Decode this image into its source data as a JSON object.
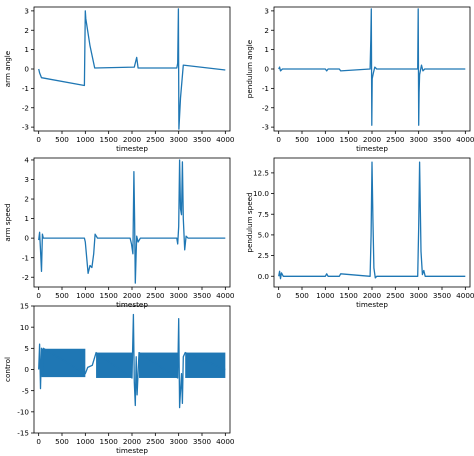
{
  "line_color": "#1f77b4",
  "chart_data": [
    {
      "type": "line",
      "xlabel": "timestep",
      "ylabel": "arm angle",
      "xlim": [
        -100,
        4100
      ],
      "ylim": [
        -3.2,
        3.2
      ],
      "xticks": [
        0,
        500,
        1000,
        1500,
        2000,
        2500,
        3000,
        3500,
        4000
      ],
      "yticks": [
        -3,
        -2,
        -1,
        0,
        1,
        2,
        3
      ],
      "grid": false,
      "series": [
        {
          "x": [
            0,
            20,
            60,
            980,
            1000,
            1010,
            1100,
            1200,
            2050,
            2100,
            2130,
            2170,
            2960,
            2980,
            2995,
            3005,
            3015,
            3040,
            3100,
            4000
          ],
          "y": [
            0.0,
            -0.2,
            -0.45,
            -0.85,
            3.0,
            2.6,
            1.2,
            0.05,
            0.1,
            0.6,
            0.05,
            0.05,
            0.05,
            0.3,
            3.1,
            -3.1,
            -2.6,
            -1.5,
            0.2,
            -0.05
          ]
        }
      ]
    },
    {
      "type": "line",
      "xlabel": "timestep",
      "ylabel": "pendulum angle",
      "xlim": [
        -100,
        4100
      ],
      "ylim": [
        -3.2,
        3.2
      ],
      "xticks": [
        0,
        500,
        1000,
        1500,
        2000,
        2500,
        3000,
        3500,
        4000
      ],
      "yticks": [
        -3,
        -2,
        -1,
        0,
        1,
        2,
        3
      ],
      "grid": false,
      "series": [
        {
          "x": [
            0,
            20,
            40,
            80,
            1000,
            1030,
            1060,
            1300,
            1330,
            1960,
            1975,
            1985,
            1995,
            2005,
            2030,
            2060,
            2100,
            2980,
            2990,
            3000,
            3010,
            3020,
            3060,
            3090,
            3130,
            4000
          ],
          "y": [
            0.0,
            0.1,
            -0.1,
            0.0,
            0.0,
            -0.1,
            0.0,
            0.0,
            -0.1,
            0.0,
            1.5,
            3.1,
            -2.9,
            -0.5,
            -0.2,
            0.1,
            0.0,
            0.0,
            3.1,
            -2.9,
            -1.2,
            -0.3,
            0.2,
            -0.1,
            0.0,
            0.0
          ]
        }
      ]
    },
    {
      "type": "line",
      "xlabel": "timestep",
      "ylabel": "arm speed",
      "xlim": [
        -100,
        4100
      ],
      "ylim": [
        -2.5,
        4.1
      ],
      "xticks": [
        0,
        500,
        1000,
        1500,
        2000,
        2500,
        3000,
        3500,
        4000
      ],
      "yticks": [
        -2,
        -1,
        0,
        1,
        2,
        3,
        4
      ],
      "grid": false,
      "series": [
        {
          "x": [
            0,
            20,
            40,
            60,
            80,
            100,
            980,
            1000,
            1030,
            1060,
            1100,
            1140,
            1180,
            1210,
            1260,
            1960,
            1990,
            2020,
            2040,
            2055,
            2070,
            2090,
            2100,
            2130,
            2180,
            2960,
            2980,
            3000,
            3020,
            3040,
            3060,
            3080,
            3100,
            3130,
            3160,
            3200,
            4000
          ],
          "y": [
            -0.1,
            0.3,
            -0.6,
            -1.7,
            0.2,
            0.0,
            0.0,
            -0.2,
            -1.0,
            -1.8,
            -1.4,
            -1.5,
            -0.8,
            0.2,
            0.0,
            0.0,
            -0.3,
            -0.8,
            3.4,
            1.0,
            -2.3,
            -0.7,
            0.1,
            -0.2,
            0.0,
            0.0,
            -0.3,
            0.6,
            4.0,
            1.5,
            1.2,
            3.9,
            1.0,
            -0.6,
            0.1,
            0.0,
            0.0
          ]
        }
      ]
    },
    {
      "type": "line",
      "xlabel": "timestep",
      "ylabel": "pendulum speed",
      "xlim": [
        -100,
        4100
      ],
      "ylim": [
        -1.3,
        14.3
      ],
      "xticks": [
        0,
        500,
        1000,
        1500,
        2000,
        2500,
        3000,
        3500,
        4000
      ],
      "yticks": [
        0.0,
        2.5,
        5.0,
        7.5,
        10.0,
        12.5
      ],
      "grid": false,
      "series": [
        {
          "x": [
            0,
            20,
            40,
            60,
            100,
            1000,
            1030,
            1060,
            1300,
            1330,
            1960,
            1980,
            2000,
            2020,
            2040,
            2070,
            2100,
            2980,
            3000,
            3020,
            3050,
            3080,
            3110,
            3140,
            4000
          ],
          "y": [
            0.0,
            0.6,
            -0.3,
            0.4,
            0.0,
            0.0,
            0.3,
            0.0,
            0.0,
            0.3,
            0.0,
            5.0,
            13.8,
            7.0,
            1.0,
            -0.2,
            0.0,
            0.0,
            6.0,
            13.8,
            3.0,
            0.2,
            0.7,
            0.0,
            0.0
          ]
        }
      ]
    },
    {
      "type": "line",
      "xlabel": "timestep",
      "ylabel": "control",
      "xlim": [
        -100,
        4100
      ],
      "ylim": [
        -15,
        15
      ],
      "xticks": [
        0,
        500,
        1000,
        1500,
        2000,
        2500,
        3000,
        3500,
        4000
      ],
      "yticks": [
        -15,
        -10,
        -5,
        0,
        5,
        10,
        15
      ],
      "grid": false,
      "series": [
        {
          "x": [
            0,
            20,
            40,
            60,
            80,
            100,
            1000,
            1050,
            1150,
            1230,
            2000,
            2030,
            2050,
            2070,
            2090,
            2110,
            2150,
            2980,
            3000,
            3020,
            3040,
            3060,
            3080,
            3100,
            3140,
            4000
          ],
          "y": [
            0,
            6,
            -4.5,
            5,
            -1.5,
            5,
            -1,
            0.5,
            1.0,
            4,
            -2,
            13,
            -3,
            -8.5,
            3,
            -6,
            4,
            -2,
            12,
            -9,
            -5,
            -1,
            -8,
            3,
            4,
            0
          ],
          "band": {
            "x": [
              [
                60,
                1000
              ],
              [
                1230,
                2000
              ],
              [
                2150,
                2980
              ],
              [
                3140,
                4000
              ]
            ],
            "low": [
              -1.8,
              -2.0,
              -2.0,
              -2.0
            ],
            "high": [
              4.9,
              4.0,
              4.0,
              4.0
            ]
          }
        }
      ]
    }
  ]
}
